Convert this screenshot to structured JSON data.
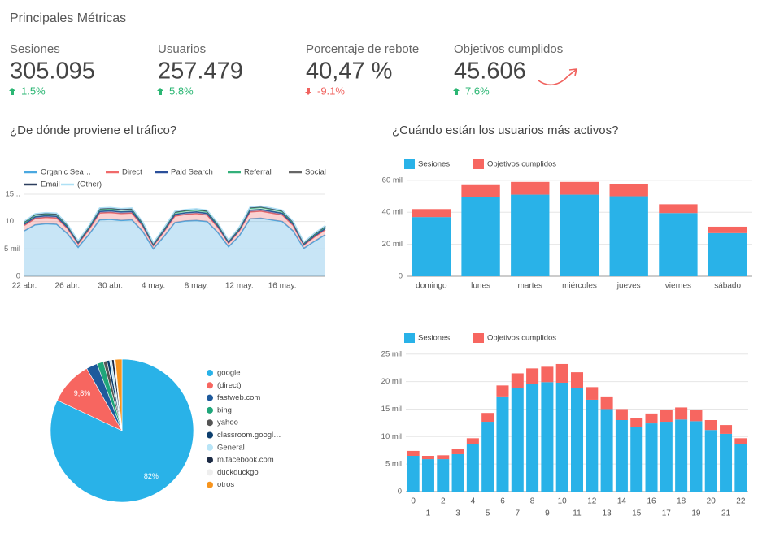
{
  "header": {
    "title": "Principales Métricas"
  },
  "kpis": [
    {
      "label": "Sesiones",
      "value": "305.095",
      "change": "1.5%",
      "direction": "up"
    },
    {
      "label": "Usuarios",
      "value": "257.479",
      "change": "5.8%",
      "direction": "up"
    },
    {
      "label": "Porcentaje de rebote",
      "value": "40,47 %",
      "change": "-9.1%",
      "direction": "down"
    },
    {
      "label": "Objetivos cumplidos",
      "value": "45.606",
      "change": "7.6%",
      "direction": "up"
    }
  ],
  "sections": [
    "¿De dónde proviene el tráfico?",
    "¿Cuándo están los usuarios más activos?"
  ],
  "chart_data": [
    {
      "type": "area",
      "stacked": true,
      "categories": [
        "22 abr.",
        null,
        null,
        null,
        "26 abr.",
        null,
        null,
        null,
        "30 abr.",
        null,
        null,
        null,
        "4 may.",
        null,
        null,
        null,
        "8 may.",
        null,
        null,
        null,
        "12 may.",
        null,
        null,
        null,
        "16 may.",
        null,
        null,
        null,
        null
      ],
      "series": [
        {
          "name": "Organic Sea…",
          "color": "#4aa8e0",
          "values": [
            8300,
            9400,
            9600,
            9500,
            7800,
            5300,
            7600,
            10300,
            10400,
            10200,
            10300,
            8200,
            5000,
            7300,
            9800,
            10100,
            10200,
            10000,
            8000,
            5400,
            7400,
            10500,
            10600,
            10300,
            10000,
            8300,
            5100,
            6400,
            7600
          ]
        },
        {
          "name": "Direct",
          "color": "#f06a6a",
          "values": [
            1000,
            1150,
            1150,
            1150,
            950,
            650,
            900,
            1250,
            1250,
            1250,
            1250,
            1000,
            600,
            900,
            1200,
            1200,
            1250,
            1200,
            950,
            650,
            900,
            1250,
            1300,
            1250,
            1200,
            1000,
            600,
            800,
            900
          ]
        },
        {
          "name": "Paid Search",
          "color": "#2a4f9a",
          "values": [
            250,
            300,
            300,
            300,
            250,
            150,
            250,
            300,
            300,
            300,
            300,
            250,
            150,
            200,
            300,
            300,
            300,
            300,
            250,
            150,
            200,
            300,
            300,
            300,
            300,
            250,
            150,
            200,
            250
          ]
        },
        {
          "name": "Referral",
          "color": "#33b07a",
          "values": [
            300,
            350,
            350,
            350,
            300,
            200,
            250,
            400,
            400,
            400,
            400,
            300,
            200,
            250,
            350,
            350,
            350,
            350,
            300,
            200,
            250,
            400,
            400,
            400,
            350,
            300,
            200,
            250,
            300
          ]
        },
        {
          "name": "Social",
          "color": "#666666",
          "values": [
            100,
            100,
            100,
            100,
            100,
            60,
            100,
            100,
            100,
            100,
            100,
            100,
            60,
            100,
            100,
            100,
            100,
            100,
            100,
            60,
            100,
            100,
            100,
            100,
            100,
            100,
            60,
            100,
            100
          ]
        },
        {
          "name": "Email",
          "color": "#2d3e5e",
          "values": [
            50,
            50,
            50,
            50,
            50,
            50,
            50,
            50,
            50,
            50,
            50,
            50,
            50,
            50,
            50,
            50,
            50,
            50,
            50,
            50,
            50,
            50,
            50,
            50,
            50,
            50,
            50,
            50,
            50
          ]
        },
        {
          "name": "(Other)",
          "color": "#aee0f5",
          "values": [
            80,
            80,
            80,
            80,
            80,
            80,
            80,
            80,
            80,
            80,
            80,
            80,
            80,
            80,
            80,
            80,
            80,
            80,
            80,
            80,
            80,
            80,
            80,
            80,
            80,
            80,
            80,
            80,
            80
          ]
        }
      ],
      "ylim": [
        0,
        15500
      ],
      "yticks": [
        0,
        {
          "value": 5000,
          "label": "5 mil"
        },
        {
          "value": 10000,
          "label": "10..."
        },
        {
          "value": 15000,
          "label": "15..."
        }
      ],
      "grid": true
    },
    {
      "type": "bar",
      "stacked": true,
      "categories": [
        "domingo",
        "lunes",
        "martes",
        "miércoles",
        "jueves",
        "viernes",
        "sábado"
      ],
      "series": [
        {
          "name": "Sesiones",
          "color": "#29b2e8",
          "values": [
            37000,
            49700,
            51000,
            51000,
            50000,
            39500,
            27000
          ]
        },
        {
          "name": "Objetivos cumplidos",
          "color": "#f76660",
          "values": [
            5000,
            7300,
            8000,
            8000,
            7500,
            5500,
            4000
          ]
        }
      ],
      "ylim": [
        0,
        65000
      ],
      "yticks": [
        0,
        {
          "value": 20000,
          "label": "20 mil"
        },
        {
          "value": 40000,
          "label": "40 mil"
        },
        {
          "value": 60000,
          "label": "60 mil"
        }
      ],
      "grid": true
    },
    {
      "type": "bar",
      "stacked": true,
      "categories": [
        "0",
        "1",
        "2",
        "3",
        "4",
        "5",
        "6",
        "7",
        "8",
        "9",
        "10",
        "11",
        "12",
        "13",
        "14",
        "15",
        "16",
        "17",
        "18",
        "19",
        "20",
        "21",
        "22"
      ],
      "series": [
        {
          "name": "Sesiones",
          "color": "#29b2e8",
          "values": [
            6500,
            5900,
            5900,
            6800,
            8700,
            12700,
            17300,
            18900,
            19600,
            19900,
            19800,
            18900,
            16700,
            15000,
            13000,
            11700,
            12400,
            12700,
            13100,
            12800,
            11200,
            10500,
            8600
          ]
        },
        {
          "name": "Objetivos cumplidos",
          "color": "#f76660",
          "values": [
            900,
            600,
            700,
            900,
            1000,
            1600,
            2000,
            2600,
            2800,
            2800,
            3400,
            2800,
            2300,
            2300,
            2000,
            1700,
            1800,
            2100,
            2200,
            2000,
            1800,
            1600,
            1100
          ]
        }
      ],
      "ylim": [
        0,
        26000
      ],
      "yticks": [
        0,
        {
          "value": 5000,
          "label": "5 mil"
        },
        {
          "value": 10000,
          "label": "10 mil"
        },
        {
          "value": 15000,
          "label": "15 mil"
        },
        {
          "value": 20000,
          "label": "20 mil"
        },
        {
          "value": 25000,
          "label": "25 mil"
        }
      ],
      "grid": true
    },
    {
      "type": "pie",
      "categories": [
        "google",
        "(direct)",
        "fastweb.com",
        "bing",
        "yahoo",
        "classroom.googl…",
        "General",
        "m.facebook.com",
        "duckduckgo",
        "otros"
      ],
      "values": [
        82,
        9.8,
        2.5,
        1.5,
        0.8,
        0.6,
        0.5,
        0.5,
        0.3,
        1.5
      ],
      "value_labels": [
        "82%",
        "9,8%",
        null,
        null,
        null,
        null,
        null,
        null,
        null,
        null
      ],
      "colors": [
        "#29b2e8",
        "#f76660",
        "#1e5a9c",
        "#1fa67a",
        "#555555",
        "#0d3f6e",
        "#b9e5f7",
        "#1c2b45",
        "#eeeeee",
        "#f7941d"
      ]
    }
  ]
}
